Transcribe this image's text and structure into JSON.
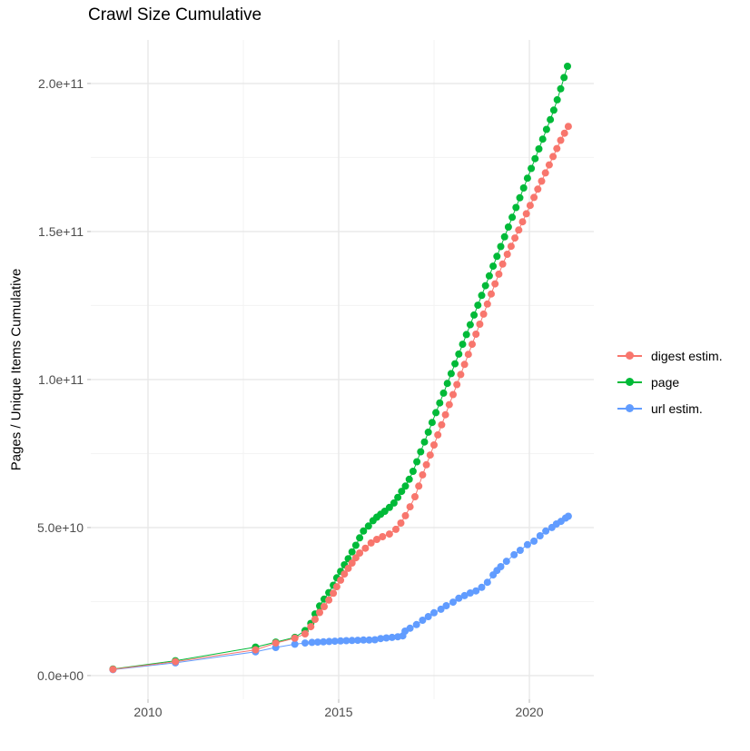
{
  "title": "Crawl Size Cumulative",
  "axes": {
    "y_label": "Pages / Unique Items Cumulative",
    "x_label": ""
  },
  "legend": {
    "position": "right",
    "items": [
      {
        "label": "digest estim.",
        "color": "#F8766D"
      },
      {
        "label": "page",
        "color": "#00BA38"
      },
      {
        "label": "url estim.",
        "color": "#619CFF"
      }
    ]
  },
  "style": {
    "background": "#FFFFFF",
    "major_grid_color": "#E8E8E8",
    "minor_grid_color": "#F3F3F3",
    "tick_mark_color": "#C4C4C4",
    "tick_label_color": "#4D4D4D",
    "title_color": "#000000"
  },
  "chart_data": {
    "type": "line",
    "marker": "circle",
    "title": "Crawl Size Cumulative",
    "xlabel": "",
    "ylabel": "Pages / Unique Items Cumulative",
    "grid": true,
    "legend_position": "right",
    "xlim": [
      2008.5,
      2021.69
    ],
    "ylim": [
      -8000000000.0,
      214700000000.0
    ],
    "x_ticks": [
      {
        "value": 2010,
        "label": "2010"
      },
      {
        "value": 2015,
        "label": "2015"
      },
      {
        "value": 2020,
        "label": "2020"
      }
    ],
    "y_ticks": [
      {
        "value": 0,
        "label": "0.0e+00"
      },
      {
        "value": 50000000000.0,
        "label": "5.0e+10"
      },
      {
        "value": 100000000000.0,
        "label": "1.0e+11"
      },
      {
        "value": 150000000000.0,
        "label": "1.5e+11"
      },
      {
        "value": 200000000000.0,
        "label": "2.0e+11"
      }
    ],
    "x_minor_ticks": [
      2012.5,
      2017.5
    ],
    "y_minor_ticks": [
      25000000000.0,
      75000000000.0,
      125000000000.0,
      175000000000.0
    ],
    "series": [
      {
        "name": "page",
        "color": "#00BA38",
        "points": [
          [
            2009.08,
            2200000000.0
          ],
          [
            2010.72,
            5000000000.0
          ],
          [
            2012.82,
            9600000000.0
          ],
          [
            2013.35,
            11300000000.0
          ],
          [
            2013.85,
            12900000000.0
          ],
          [
            2014.12,
            15200000000.0
          ],
          [
            2014.27,
            17600000000.0
          ],
          [
            2014.38,
            20800000000.0
          ],
          [
            2014.5,
            23500000000.0
          ],
          [
            2014.62,
            25800000000.0
          ],
          [
            2014.74,
            28000000000.0
          ],
          [
            2014.86,
            30500000000.0
          ],
          [
            2014.95,
            33000000000.0
          ],
          [
            2015.05,
            35200000000.0
          ],
          [
            2015.15,
            37400000000.0
          ],
          [
            2015.25,
            39500000000.0
          ],
          [
            2015.35,
            41800000000.0
          ],
          [
            2015.45,
            44000000000.0
          ],
          [
            2015.55,
            46500000000.0
          ],
          [
            2015.65,
            48800000000.0
          ],
          [
            2015.78,
            50500000000.0
          ],
          [
            2015.9,
            52300000000.0
          ],
          [
            2016.0,
            53500000000.0
          ],
          [
            2016.1,
            54500000000.0
          ],
          [
            2016.21,
            55500000000.0
          ],
          [
            2016.33,
            56800000000.0
          ],
          [
            2016.45,
            58300000000.0
          ],
          [
            2016.55,
            60200000000.0
          ],
          [
            2016.65,
            62200000000.0
          ],
          [
            2016.75,
            64000000000.0
          ],
          [
            2016.85,
            66300000000.0
          ],
          [
            2016.95,
            69000000000.0
          ],
          [
            2017.05,
            72200000000.0
          ],
          [
            2017.15,
            75600000000.0
          ],
          [
            2017.25,
            78900000000.0
          ],
          [
            2017.35,
            82200000000.0
          ],
          [
            2017.45,
            85500000000.0
          ],
          [
            2017.55,
            88800000000.0
          ],
          [
            2017.65,
            92100000000.0
          ],
          [
            2017.75,
            95400000000.0
          ],
          [
            2017.85,
            98700000000.0
          ],
          [
            2017.95,
            102000000000.0
          ],
          [
            2018.05,
            105300000000.0
          ],
          [
            2018.15,
            108600000000.0
          ],
          [
            2018.25,
            111900000000.0
          ],
          [
            2018.35,
            115200000000.0
          ],
          [
            2018.45,
            118500000000.0
          ],
          [
            2018.55,
            121800000000.0
          ],
          [
            2018.65,
            125100000000.0
          ],
          [
            2018.75,
            128400000000.0
          ],
          [
            2018.85,
            131700000000.0
          ],
          [
            2018.95,
            135000000000.0
          ],
          [
            2019.05,
            138300000000.0
          ],
          [
            2019.15,
            141600000000.0
          ],
          [
            2019.25,
            144900000000.0
          ],
          [
            2019.35,
            148200000000.0
          ],
          [
            2019.45,
            151500000000.0
          ],
          [
            2019.55,
            154800000000.0
          ],
          [
            2019.65,
            158100000000.0
          ],
          [
            2019.75,
            161400000000.0
          ],
          [
            2019.85,
            164700000000.0
          ],
          [
            2019.95,
            168000000000.0
          ],
          [
            2020.05,
            171300000000.0
          ],
          [
            2020.15,
            174600000000.0
          ],
          [
            2020.25,
            177900000000.0
          ],
          [
            2020.35,
            181200000000.0
          ],
          [
            2020.45,
            184500000000.0
          ],
          [
            2020.55,
            187800000000.0
          ],
          [
            2020.64,
            191000000000.0
          ],
          [
            2020.73,
            194500000000.0
          ],
          [
            2020.82,
            198200000000.0
          ],
          [
            2020.91,
            202000000000.0
          ],
          [
            2021.0,
            205800000000.0
          ]
        ]
      },
      {
        "name": "url estim.",
        "color": "#619CFF",
        "points": [
          [
            2009.08,
            2000000000.0
          ],
          [
            2010.72,
            4300000000.0
          ],
          [
            2012.82,
            8000000000.0
          ],
          [
            2013.35,
            9500000000.0
          ],
          [
            2013.85,
            10600000000.0
          ],
          [
            2014.12,
            11000000000.0
          ],
          [
            2014.3,
            11200000000.0
          ],
          [
            2014.45,
            11300000000.0
          ],
          [
            2014.6,
            11400000000.0
          ],
          [
            2014.75,
            11500000000.0
          ],
          [
            2014.9,
            11600000000.0
          ],
          [
            2015.05,
            11700000000.0
          ],
          [
            2015.2,
            11800000000.0
          ],
          [
            2015.35,
            11850000000.0
          ],
          [
            2015.5,
            11900000000.0
          ],
          [
            2015.65,
            12000000000.0
          ],
          [
            2015.8,
            12000000000.0
          ],
          [
            2015.95,
            12100000000.0
          ],
          [
            2016.1,
            12500000000.0
          ],
          [
            2016.25,
            12700000000.0
          ],
          [
            2016.4,
            12900000000.0
          ],
          [
            2016.55,
            13100000000.0
          ],
          [
            2016.68,
            13400000000.0
          ],
          [
            2016.74,
            15000000000.0
          ],
          [
            2016.87,
            16000000000.0
          ],
          [
            2017.04,
            17200000000.0
          ],
          [
            2017.2,
            18700000000.0
          ],
          [
            2017.35,
            19900000000.0
          ],
          [
            2017.5,
            21200000000.0
          ],
          [
            2017.68,
            22400000000.0
          ],
          [
            2017.82,
            23600000000.0
          ],
          [
            2018.0,
            24800000000.0
          ],
          [
            2018.15,
            26100000000.0
          ],
          [
            2018.3,
            27000000000.0
          ],
          [
            2018.45,
            27900000000.0
          ],
          [
            2018.6,
            28600000000.0
          ],
          [
            2018.75,
            29800000000.0
          ],
          [
            2018.9,
            31500000000.0
          ],
          [
            2019.05,
            34000000000.0
          ],
          [
            2019.15,
            35500000000.0
          ],
          [
            2019.25,
            36800000000.0
          ],
          [
            2019.4,
            38600000000.0
          ],
          [
            2019.6,
            40800000000.0
          ],
          [
            2019.76,
            42300000000.0
          ],
          [
            2019.95,
            44200000000.0
          ],
          [
            2020.12,
            45400000000.0
          ],
          [
            2020.28,
            47200000000.0
          ],
          [
            2020.43,
            48800000000.0
          ],
          [
            2020.59,
            50000000000.0
          ],
          [
            2020.71,
            51200000000.0
          ],
          [
            2020.83,
            52100000000.0
          ],
          [
            2020.95,
            53200000000.0
          ],
          [
            2021.02,
            53800000000.0
          ]
        ]
      },
      {
        "name": "digest estim.",
        "color": "#F8766D",
        "points": [
          [
            2009.08,
            2100000000.0
          ],
          [
            2010.72,
            4700000000.0
          ],
          [
            2012.82,
            8700000000.0
          ],
          [
            2013.35,
            11000000000.0
          ],
          [
            2013.85,
            12600000000.0
          ],
          [
            2014.12,
            14100000000.0
          ],
          [
            2014.27,
            16500000000.0
          ],
          [
            2014.38,
            19000000000.0
          ],
          [
            2014.5,
            21300000000.0
          ],
          [
            2014.62,
            23300000000.0
          ],
          [
            2014.74,
            25500000000.0
          ],
          [
            2014.86,
            27800000000.0
          ],
          [
            2014.95,
            30000000000.0
          ],
          [
            2015.05,
            32200000000.0
          ],
          [
            2015.15,
            34300000000.0
          ],
          [
            2015.25,
            36200000000.0
          ],
          [
            2015.35,
            38000000000.0
          ],
          [
            2015.45,
            39800000000.0
          ],
          [
            2015.55,
            41400000000.0
          ],
          [
            2015.7,
            43000000000.0
          ],
          [
            2015.85,
            44800000000.0
          ],
          [
            2016.0,
            46000000000.0
          ],
          [
            2016.15,
            46900000000.0
          ],
          [
            2016.33,
            47800000000.0
          ],
          [
            2016.5,
            49400000000.0
          ],
          [
            2016.63,
            51500000000.0
          ],
          [
            2016.75,
            54000000000.0
          ],
          [
            2016.87,
            57000000000.0
          ],
          [
            2017.0,
            60400000000.0
          ],
          [
            2017.1,
            64000000000.0
          ],
          [
            2017.2,
            67800000000.0
          ],
          [
            2017.3,
            71200000000.0
          ],
          [
            2017.4,
            74500000000.0
          ],
          [
            2017.5,
            77900000000.0
          ],
          [
            2017.6,
            81300000000.0
          ],
          [
            2017.7,
            84700000000.0
          ],
          [
            2017.8,
            88100000000.0
          ],
          [
            2017.9,
            91500000000.0
          ],
          [
            2018.0,
            94900000000.0
          ],
          [
            2018.1,
            98300000000.0
          ],
          [
            2018.2,
            101700000000.0
          ],
          [
            2018.3,
            105100000000.0
          ],
          [
            2018.4,
            108500000000.0
          ],
          [
            2018.5,
            111900000000.0
          ],
          [
            2018.6,
            115300000000.0
          ],
          [
            2018.7,
            118700000000.0
          ],
          [
            2018.8,
            122100000000.0
          ],
          [
            2018.9,
            125500000000.0
          ],
          [
            2019.0,
            128900000000.0
          ],
          [
            2019.1,
            132300000000.0
          ],
          [
            2019.2,
            135600000000.0
          ],
          [
            2019.3,
            139000000000.0
          ],
          [
            2019.42,
            142300000000.0
          ],
          [
            2019.52,
            145000000000.0
          ],
          [
            2019.62,
            147800000000.0
          ],
          [
            2019.72,
            150500000000.0
          ],
          [
            2019.82,
            153300000000.0
          ],
          [
            2019.92,
            156000000000.0
          ],
          [
            2020.02,
            158800000000.0
          ],
          [
            2020.12,
            161500000000.0
          ],
          [
            2020.22,
            164300000000.0
          ],
          [
            2020.32,
            167000000000.0
          ],
          [
            2020.42,
            169800000000.0
          ],
          [
            2020.52,
            172500000000.0
          ],
          [
            2020.62,
            175300000000.0
          ],
          [
            2020.72,
            178000000000.0
          ],
          [
            2020.82,
            180800000000.0
          ],
          [
            2020.92,
            183200000000.0
          ],
          [
            2021.02,
            185500000000.0
          ]
        ]
      }
    ]
  }
}
